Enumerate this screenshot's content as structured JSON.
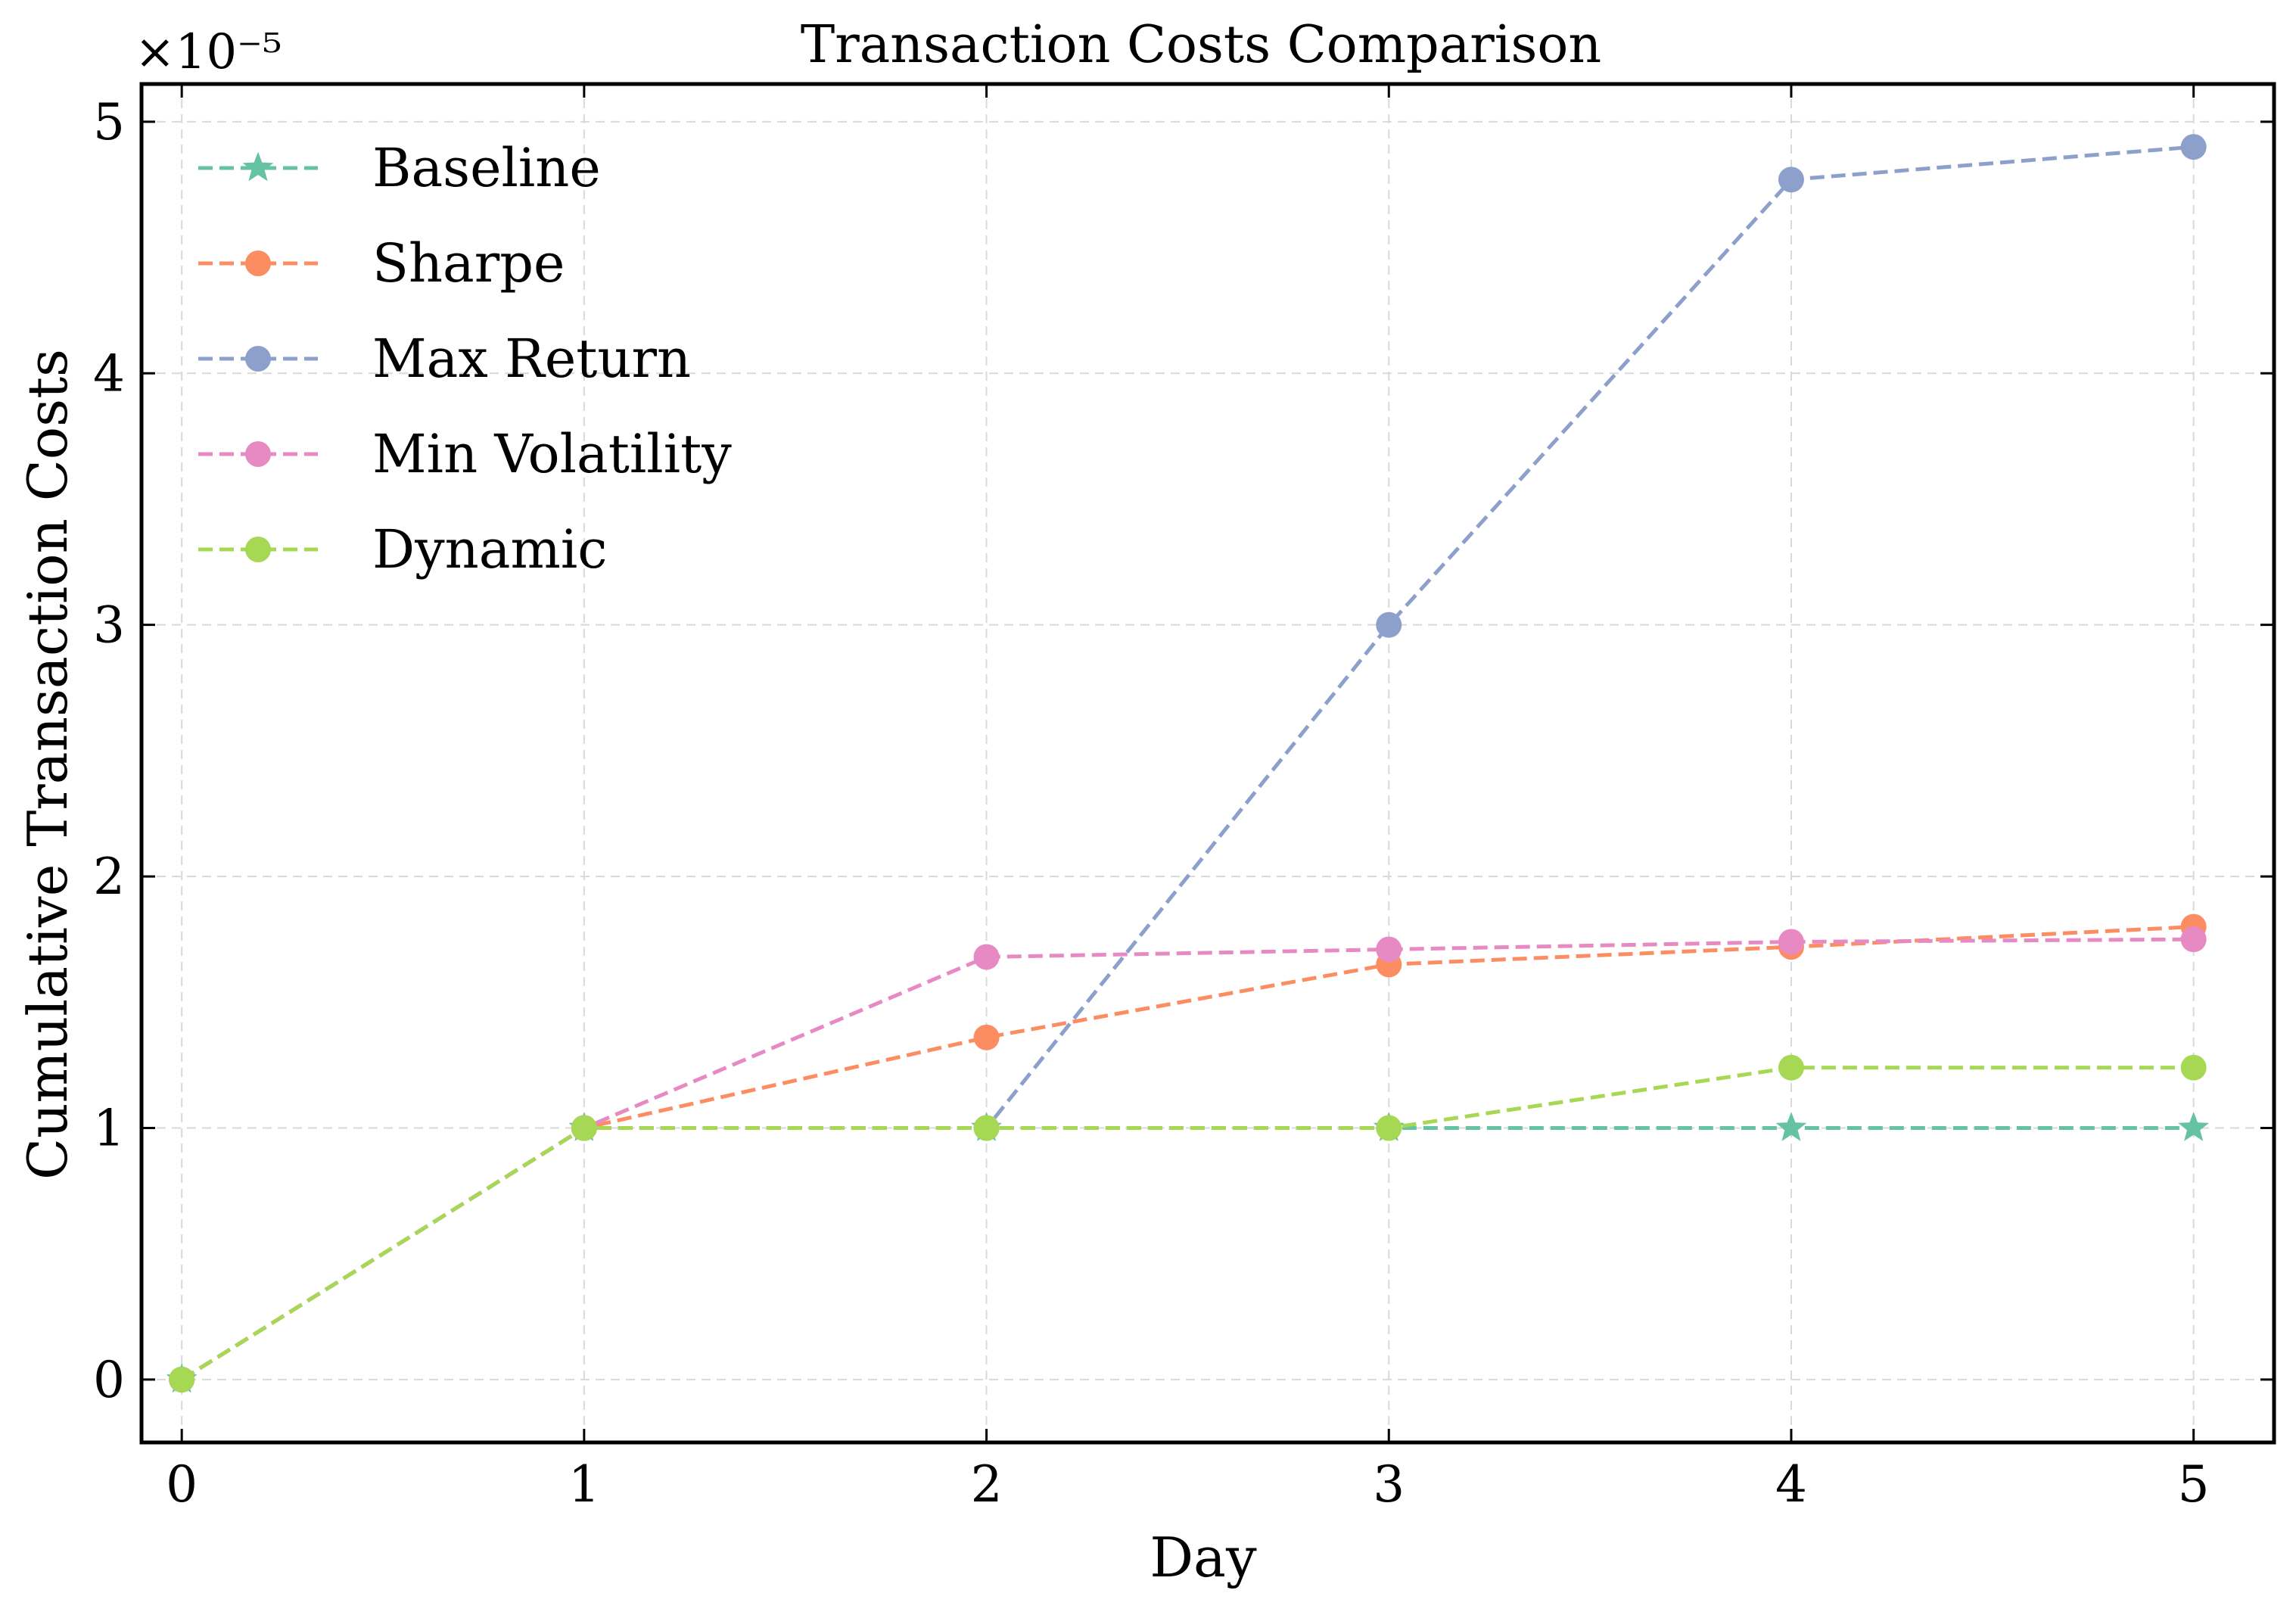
{
  "chart_data": {
    "type": "line",
    "title": "Transaction Costs Comparison",
    "xlabel": "Day",
    "ylabel": "Cumulative Transaction Costs",
    "y_offset_label": "×10⁻⁵",
    "x": [
      0,
      1,
      2,
      3,
      4,
      5
    ],
    "x_ticks": [
      "0",
      "1",
      "2",
      "3",
      "4",
      "5"
    ],
    "y_ticks": [
      "0",
      "1",
      "2",
      "3",
      "4",
      "5"
    ],
    "xlim": [
      -0.1,
      5.2
    ],
    "ylim": [
      -0.25,
      5.15
    ],
    "y_scale_note": "values in units of 1e-5",
    "grid": true,
    "legend_position": "upper-left",
    "series": [
      {
        "name": "Baseline",
        "color": "#66c2a5",
        "marker": "star",
        "values": [
          0,
          1.0,
          1.0,
          1.0,
          1.0,
          1.0
        ]
      },
      {
        "name": "Sharpe",
        "color": "#fc8d62",
        "marker": "circle",
        "values": [
          0,
          1.0,
          1.36,
          1.65,
          1.72,
          1.8
        ]
      },
      {
        "name": "Max Return",
        "color": "#8da0cb",
        "marker": "circle",
        "values": [
          0,
          1.0,
          1.0,
          3.0,
          4.77,
          4.9
        ]
      },
      {
        "name": "Min Volatility",
        "color": "#e78ac3",
        "marker": "circle",
        "values": [
          0,
          1.0,
          1.68,
          1.71,
          1.74,
          1.75
        ]
      },
      {
        "name": "Dynamic",
        "color": "#a6d854",
        "marker": "circle",
        "values": [
          0,
          1.0,
          1.0,
          1.0,
          1.24,
          1.24
        ]
      }
    ]
  }
}
